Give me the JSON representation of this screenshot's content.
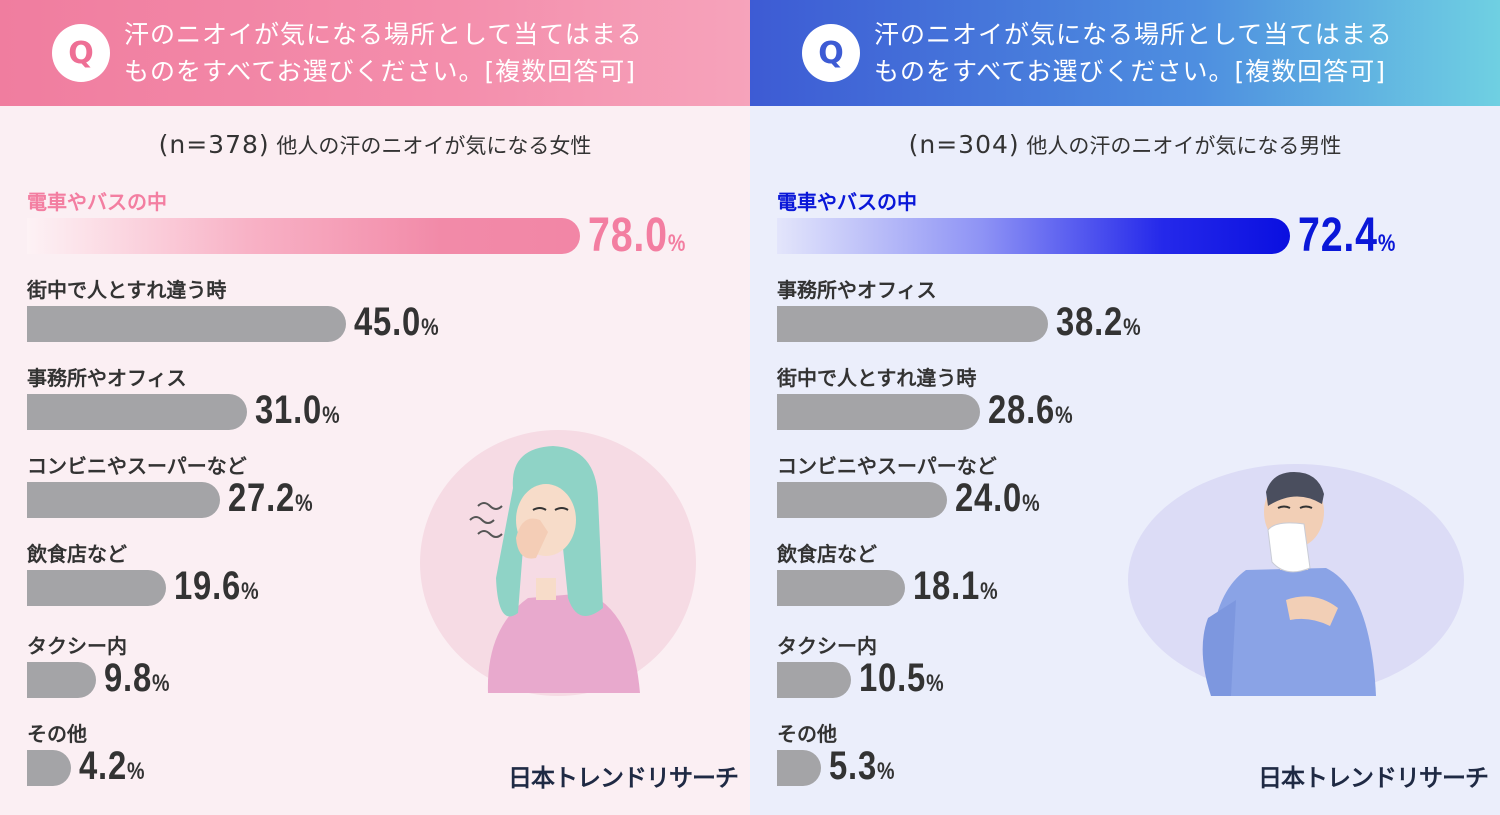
{
  "female": {
    "question_line1": "汗のニオイが気になる場所として当てはまる",
    "question_line2": "ものをすべてお選びください。[複数回答可]",
    "badge": "Q",
    "n_label": "(n=378)",
    "subtitle": "他人の汗のニオイが気になる女性",
    "logo": "日本トレンドリサーチ",
    "items": [
      {
        "label": "電車やバスの中",
        "value": "78.0",
        "pct": "%"
      },
      {
        "label": "街中で人とすれ違う時",
        "value": "45.0",
        "pct": "%"
      },
      {
        "label": "事務所やオフィス",
        "value": "31.0",
        "pct": "%"
      },
      {
        "label": "コンビニやスーパーなど",
        "value": "27.2",
        "pct": "%"
      },
      {
        "label": "飲食店など",
        "value": "19.6",
        "pct": "%"
      },
      {
        "label": "タクシー内",
        "value": "9.8",
        "pct": "%"
      },
      {
        "label": "その他",
        "value": "4.2",
        "pct": "%"
      }
    ]
  },
  "male": {
    "question_line1": "汗のニオイが気になる場所として当てはまる",
    "question_line2": "ものをすべてお選びください。[複数回答可]",
    "badge": "Q",
    "n_label": "(n=304)",
    "subtitle": "他人の汗のニオイが気になる男性",
    "logo": "日本トレンドリサーチ",
    "items": [
      {
        "label": "電車やバスの中",
        "value": "72.4",
        "pct": "%"
      },
      {
        "label": "事務所やオフィス",
        "value": "38.2",
        "pct": "%"
      },
      {
        "label": "街中で人とすれ違う時",
        "value": "28.6",
        "pct": "%"
      },
      {
        "label": "コンビニやスーパーなど",
        "value": "24.0",
        "pct": "%"
      },
      {
        "label": "飲食店など",
        "value": "18.1",
        "pct": "%"
      },
      {
        "label": "タクシー内",
        "value": "10.5",
        "pct": "%"
      },
      {
        "label": "その他",
        "value": "5.3",
        "pct": "%"
      }
    ]
  },
  "colors": {
    "female_accent": "#f37ea1",
    "male_accent": "#0a17d8",
    "bar_gray": "#a4a4a7"
  },
  "chart_data": [
    {
      "type": "bar",
      "orientation": "horizontal",
      "title": "汗のニオイが気になる場所として当てはまるものをすべてお選びください。[複数回答可]",
      "subtitle": "他人の汗のニオイが気になる女性",
      "n": 378,
      "categories": [
        "電車やバスの中",
        "街中で人とすれ違う時",
        "事務所やオフィス",
        "コンビニやスーパーなど",
        "飲食店など",
        "タクシー内",
        "その他"
      ],
      "values": [
        78.0,
        45.0,
        31.0,
        27.2,
        19.6,
        9.8,
        4.2
      ],
      "unit": "%",
      "grid": false,
      "legend": "none"
    },
    {
      "type": "bar",
      "orientation": "horizontal",
      "title": "汗のニオイが気になる場所として当てはまるものをすべてお選びください。[複数回答可]",
      "subtitle": "他人の汗のニオイが気になる男性",
      "n": 304,
      "categories": [
        "電車やバスの中",
        "事務所やオフィス",
        "街中で人とすれ違う時",
        "コンビニやスーパーなど",
        "飲食店など",
        "タクシー内",
        "その他"
      ],
      "values": [
        72.4,
        38.2,
        28.6,
        24.0,
        18.1,
        10.5,
        5.3
      ],
      "unit": "%",
      "grid": false,
      "legend": "none"
    }
  ]
}
